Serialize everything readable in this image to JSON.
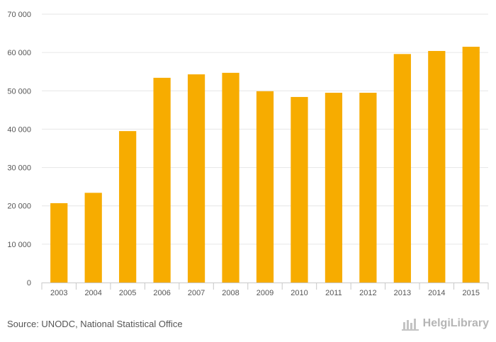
{
  "chart_data": {
    "type": "bar",
    "categories": [
      "2003",
      "2004",
      "2005",
      "2006",
      "2007",
      "2008",
      "2009",
      "2010",
      "2011",
      "2012",
      "2013",
      "2014",
      "2015"
    ],
    "values": [
      20700,
      23400,
      39500,
      53400,
      54300,
      54700,
      49900,
      48400,
      49500,
      49500,
      59600,
      60400,
      61500
    ],
    "ylim": [
      0,
      70000
    ],
    "yticks": [
      0,
      10000,
      20000,
      30000,
      40000,
      50000,
      60000,
      70000
    ],
    "ytick_labels": [
      "0",
      "10 000",
      "20 000",
      "30 000",
      "40 000",
      "50 000",
      "60 000",
      "70 000"
    ],
    "grid": true,
    "bar_color": "#f7ac00"
  },
  "footer": {
    "source": "Source: UNODC, National Statistical Office",
    "brand": "HelgiLibrary"
  }
}
